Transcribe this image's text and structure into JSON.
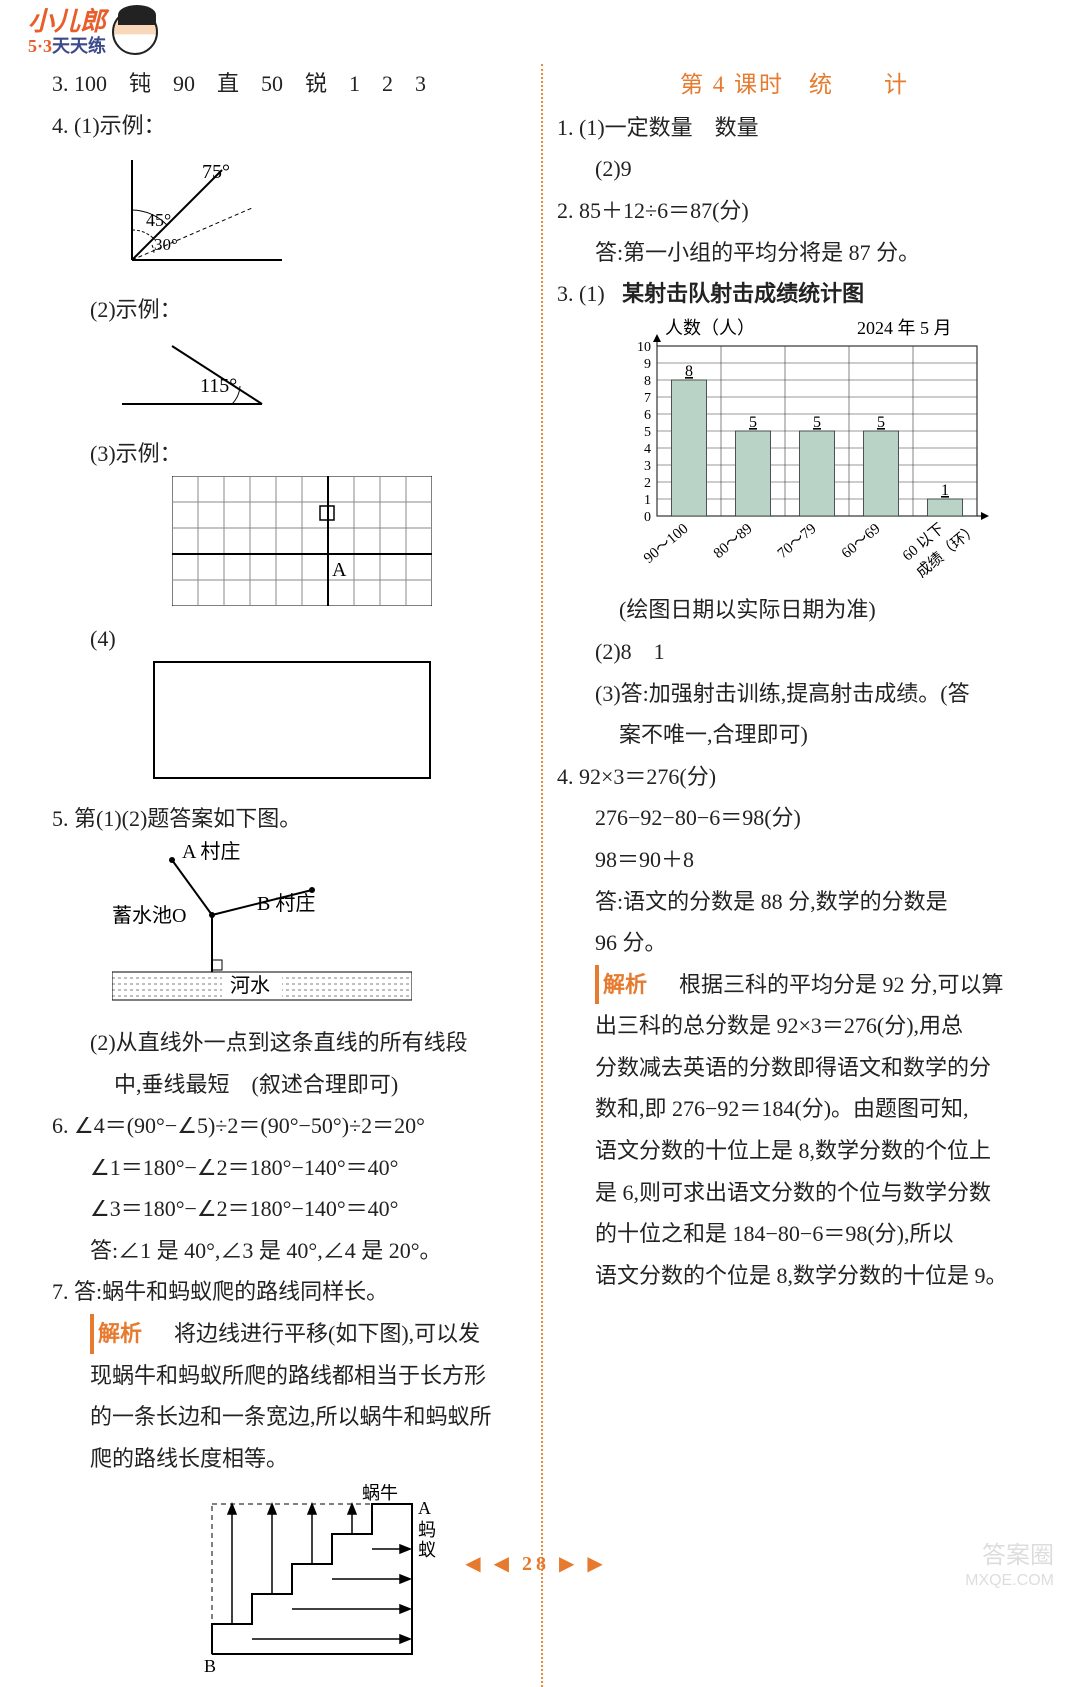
{
  "header": {
    "brand_top": "小儿郎",
    "brand_bottom_53": "5·3",
    "brand_bottom_rest": "天天练"
  },
  "left": {
    "q3": "3. 100　钝　90　直　50　锐　1　2　3",
    "q4": "4. (1)示例：",
    "q4_angle": {
      "a1": "75°",
      "a2": "45°",
      "a3": "30°"
    },
    "q4_2": "(2)示例：",
    "q4_2_angle": "115°",
    "q4_3": "(3)示例：",
    "q4_3_label": "A",
    "q4_4": "(4)",
    "q5": "5. 第(1)(2)题答案如下图。",
    "q5_labels": {
      "a": "A 村庄",
      "o": "蓄水池O",
      "b": "B 村庄",
      "river": "河水"
    },
    "q5_2a": "(2)从直线外一点到这条直线的所有线段",
    "q5_2b": "中,垂线最短　(叙述合理即可)",
    "q6_1": "6. ∠4＝(90°−∠5)÷2＝(90°−50°)÷2＝20°",
    "q6_2": "∠1＝180°−∠2＝180°−140°＝40°",
    "q6_3": "∠3＝180°−∠2＝180°−140°＝40°",
    "q6_4": "答:∠1 是 40°,∠3 是 40°,∠4 是 20°。",
    "q7_1": "7. 答:蜗牛和蚂蚁爬的路线同样长。",
    "q7_jiexi": "解析",
    "q7_2": "　将边线进行平移(如下图),可以发",
    "q7_3": "现蜗牛和蚂蚁所爬的路线都相当于长方形",
    "q7_4": "的一条长边和一条宽边,所以蜗牛和蚂蚁所",
    "q7_5": "爬的路线长度相等。",
    "q7_labels": {
      "snail": "蜗牛",
      "ant": "蚂",
      "ant2": "蚁",
      "A": "A",
      "B": "B"
    }
  },
  "right": {
    "title": "第 4 课时　统　　计",
    "q1_1": "1. (1)一定数量　数量",
    "q1_2": "(2)9",
    "q2_1": "2. 85＋12÷6＝87(分)",
    "q2_2": "答:第一小组的平均分将是 87 分。",
    "q3_1_prefix": "3. (1)",
    "q3_1_title": "某射击队射击成绩统计图",
    "chart": {
      "ylabel": "人数（人）",
      "date": "2024 年 5 月",
      "ymax": 10,
      "ytick_step": 1,
      "categories": [
        "90～100",
        "80～89",
        "70～79",
        "60～69",
        "60 以下"
      ],
      "xlabel_suffix": "成绩（环）",
      "values": [
        8,
        5,
        5,
        5,
        1
      ],
      "bar_color": "#b9d4c7",
      "grid_color": "#333333",
      "background_color": "#ffffff",
      "bar_width_ratio": 0.55
    },
    "q3_note": "(绘图日期以实际日期为准)",
    "q3_2": "(2)8　1",
    "q3_3a": "(3)答:加强射击训练,提高射击成绩。(答",
    "q3_3b": "案不唯一,合理即可)",
    "q4_1": "4. 92×3＝276(分)",
    "q4_2": "276−92−80−6＝98(分)",
    "q4_3": "98＝90＋8",
    "q4_4a": "答:语文的分数是 88 分,数学的分数是",
    "q4_4b": "96 分。",
    "q4_jiexi": "解析",
    "q4_5a": "　根据三科的平均分是 92 分,可以算",
    "q4_5b": "出三科的总分数是 92×3＝276(分),用总",
    "q4_5c": "分数减去英语的分数即得语文和数学的分",
    "q4_5d": "数和,即 276−92＝184(分)。由题图可知,",
    "q4_5e": "语文分数的十位上是 8,数学分数的个位上",
    "q4_5f": "是 6,则可求出语文分数的个位与数学分数",
    "q4_5g": "的十位之和是 184−80−6＝98(分),所以",
    "q4_5h": "语文分数的个位是 8,数学分数的十位是 9。"
  },
  "footer": {
    "page": "28",
    "left": "◀ ◀",
    "right": "▶ ▶"
  },
  "watermark": {
    "l1": "答案圈",
    "l2": "MXQE.COM"
  }
}
